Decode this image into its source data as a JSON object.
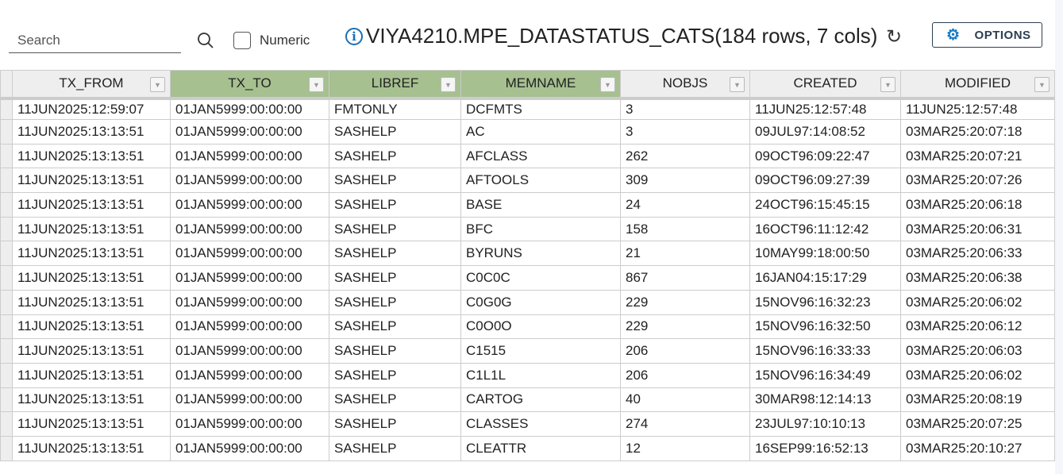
{
  "toolbar": {
    "search_placeholder": "Search",
    "numeric_label": "Numeric",
    "numeric_checked": false,
    "title": "VIYA4210.MPE_DATASTATUS_CATS(184 rows, 7 cols)",
    "options_label": "OPTIONS"
  },
  "columns": [
    "TX_FROM",
    "TX_TO",
    "LIBREF",
    "MEMNAME",
    "NOBJS",
    "CREATED",
    "MODIFIED"
  ],
  "selected_columns": [
    "TX_TO",
    "LIBREF",
    "MEMNAME"
  ],
  "rows": [
    [
      "11JUN2025:12:59:07",
      "01JAN5999:00:00:00",
      "FMTONLY",
      "DCFMTS",
      "3",
      "11JUN25:12:57:48",
      "11JUN25:12:57:48"
    ],
    [
      "11JUN2025:13:13:51",
      "01JAN5999:00:00:00",
      "SASHELP",
      "AC",
      "3",
      "09JUL97:14:08:52",
      "03MAR25:20:07:18"
    ],
    [
      "11JUN2025:13:13:51",
      "01JAN5999:00:00:00",
      "SASHELP",
      "AFCLASS",
      "262",
      "09OCT96:09:22:47",
      "03MAR25:20:07:21"
    ],
    [
      "11JUN2025:13:13:51",
      "01JAN5999:00:00:00",
      "SASHELP",
      "AFTOOLS",
      "309",
      "09OCT96:09:27:39",
      "03MAR25:20:07:26"
    ],
    [
      "11JUN2025:13:13:51",
      "01JAN5999:00:00:00",
      "SASHELP",
      "BASE",
      "24",
      "24OCT96:15:45:15",
      "03MAR25:20:06:18"
    ],
    [
      "11JUN2025:13:13:51",
      "01JAN5999:00:00:00",
      "SASHELP",
      "BFC",
      "158",
      "16OCT96:11:12:42",
      "03MAR25:20:06:31"
    ],
    [
      "11JUN2025:13:13:51",
      "01JAN5999:00:00:00",
      "SASHELP",
      "BYRUNS",
      "21",
      "10MAY99:18:00:50",
      "03MAR25:20:06:33"
    ],
    [
      "11JUN2025:13:13:51",
      "01JAN5999:00:00:00",
      "SASHELP",
      "C0C0C",
      "867",
      "16JAN04:15:17:29",
      "03MAR25:20:06:38"
    ],
    [
      "11JUN2025:13:13:51",
      "01JAN5999:00:00:00",
      "SASHELP",
      "C0G0G",
      "229",
      "15NOV96:16:32:23",
      "03MAR25:20:06:02"
    ],
    [
      "11JUN2025:13:13:51",
      "01JAN5999:00:00:00",
      "SASHELP",
      "C0O0O",
      "229",
      "15NOV96:16:32:50",
      "03MAR25:20:06:12"
    ],
    [
      "11JUN2025:13:13:51",
      "01JAN5999:00:00:00",
      "SASHELP",
      "C1515",
      "206",
      "15NOV96:16:33:33",
      "03MAR25:20:06:03"
    ],
    [
      "11JUN2025:13:13:51",
      "01JAN5999:00:00:00",
      "SASHELP",
      "C1L1L",
      "206",
      "15NOV96:16:34:49",
      "03MAR25:20:06:02"
    ],
    [
      "11JUN2025:13:13:51",
      "01JAN5999:00:00:00",
      "SASHELP",
      "CARTOG",
      "40",
      "30MAR98:12:14:13",
      "03MAR25:20:08:19"
    ],
    [
      "11JUN2025:13:13:51",
      "01JAN5999:00:00:00",
      "SASHELP",
      "CLASSES",
      "274",
      "23JUL97:10:10:13",
      "03MAR25:20:07:25"
    ],
    [
      "11JUN2025:13:13:51",
      "01JAN5999:00:00:00",
      "SASHELP",
      "CLEATTR",
      "12",
      "16SEP99:16:52:13",
      "03MAR25:20:10:27"
    ]
  ],
  "colors": {
    "selected_header": "#a6c090",
    "info_icon": "#1a6fb5",
    "gear_icon": "#1a7cc4"
  }
}
